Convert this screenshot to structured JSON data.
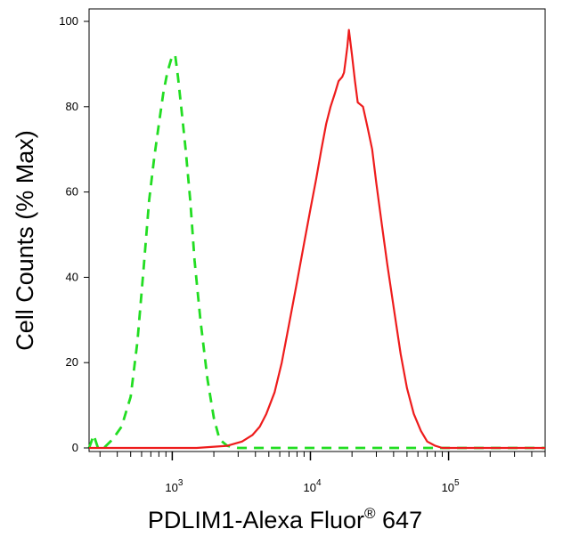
{
  "chart_data": {
    "type": "line",
    "title": "",
    "xlabel": {
      "main": "PDLIM1-Alexa Fluor",
      "superscript": "®",
      "suffix": " 647"
    },
    "ylabel": "Cell Counts (% Max)",
    "x_scale": "log",
    "xlim": [
      250,
      500000
    ],
    "ylim": [
      0,
      100
    ],
    "grid": false,
    "yticks": [
      0,
      20,
      40,
      60,
      80,
      100
    ],
    "xticks": [
      {
        "value": 1000,
        "base": "10",
        "exp": "3"
      },
      {
        "value": 10000,
        "base": "10",
        "exp": "4"
      },
      {
        "value": 100000,
        "base": "10",
        "exp": "5"
      }
    ],
    "series": [
      {
        "color": "#22dd22",
        "dashed": true,
        "x": [
          250,
          270,
          290,
          320,
          370,
          430,
          500,
          560,
          620,
          680,
          740,
          800,
          860,
          920,
          960,
          1000,
          1050,
          1100,
          1160,
          1250,
          1350,
          1450,
          1600,
          1800,
          2000,
          2200,
          2500,
          3000,
          5000,
          10000,
          50000,
          500000
        ],
        "y": [
          0,
          3,
          0,
          0,
          2,
          5,
          12,
          25,
          42,
          58,
          68,
          76,
          83,
          88,
          90,
          92,
          92,
          87,
          80,
          70,
          58,
          44,
          30,
          16,
          7,
          2,
          0.5,
          0,
          0,
          0,
          0,
          0
        ]
      },
      {
        "color": "#ee1c1c",
        "dashed": false,
        "x": [
          250,
          1500,
          2500,
          3200,
          3800,
          4300,
          4800,
          5500,
          6200,
          7000,
          8000,
          9000,
          10000,
          11000,
          12000,
          13000,
          14000,
          15000,
          16000,
          17000,
          17500,
          18000,
          18500,
          19000,
          20000,
          21000,
          22000,
          24000,
          26000,
          28000,
          30000,
          33000,
          36000,
          40000,
          45000,
          50000,
          56000,
          63000,
          70000,
          80000,
          90000,
          100000,
          130000,
          500000
        ],
        "y": [
          0,
          0,
          0.5,
          1.5,
          3,
          5,
          8,
          13,
          20,
          29,
          39,
          48,
          56,
          63,
          70,
          76,
          80,
          83,
          86,
          87,
          88,
          91,
          94,
          98,
          92,
          86,
          81,
          80,
          75,
          70,
          62,
          52,
          43,
          33,
          22,
          14,
          8,
          4,
          1.5,
          0.5,
          0,
          0,
          0,
          0
        ]
      }
    ]
  }
}
